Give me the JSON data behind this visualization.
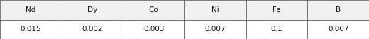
{
  "columns": [
    "Nd",
    "Dy",
    "Co",
    "Ni",
    "Fe",
    "B"
  ],
  "values": [
    "0.015",
    "0.002",
    "0.003",
    "0.007",
    "0.1",
    "0.007"
  ],
  "bg_color": "#f0f0f0",
  "border_color": "#666666",
  "header_fill": "#f0f0f0",
  "value_fill": "#ffffff",
  "text_color": "#111111",
  "font_size": 7.5,
  "figsize": [
    5.2,
    0.55
  ],
  "dpi": 100
}
